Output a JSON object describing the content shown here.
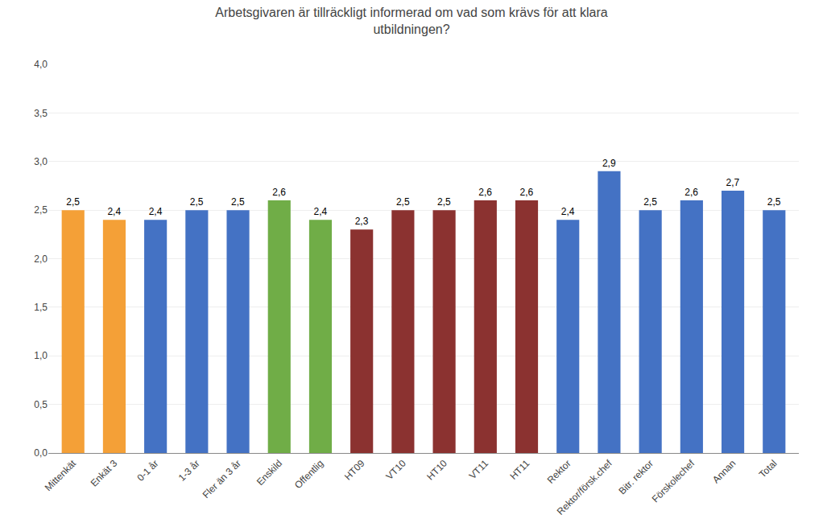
{
  "chart_data": {
    "type": "bar",
    "title": "Arbetsgivaren är tillräckligt informerad om vad som krävs för att klara\nutbildningen?",
    "categories": [
      "Mittenkät",
      "Enkät 3",
      "0-1 år",
      "1-3 år",
      "Fler än 3 år",
      "Enskild",
      "Offentlig",
      "HT09",
      "VT10",
      "HT10",
      "VT11",
      "HT11",
      "Rektor",
      "Rektor/försk.chef",
      "Bitr. rektor",
      "Förskolechef",
      "Annan",
      "Total"
    ],
    "values": [
      2.5,
      2.4,
      2.4,
      2.5,
      2.5,
      2.6,
      2.4,
      2.3,
      2.5,
      2.5,
      2.6,
      2.6,
      2.4,
      2.9,
      2.5,
      2.6,
      2.7,
      2.5
    ],
    "value_labels": [
      "2,5",
      "2,4",
      "2,4",
      "2,5",
      "2,5",
      "2,6",
      "2,4",
      "2,3",
      "2,5",
      "2,5",
      "2,6",
      "2,6",
      "2,4",
      "2,9",
      "2,5",
      "2,6",
      "2,7",
      "2,5"
    ],
    "data_labels": true,
    "colors": [
      "#F4A037",
      "#F4A037",
      "#4472C4",
      "#4472C4",
      "#4472C4",
      "#70AD47",
      "#70AD47",
      "#8B3230",
      "#8B3230",
      "#8B3230",
      "#8B3230",
      "#8B3230",
      "#4472C4",
      "#4472C4",
      "#4472C4",
      "#4472C4",
      "#4472C4",
      "#4472C4"
    ],
    "ylim": [
      0,
      4.0
    ],
    "yticks": [
      {
        "value": 0.0,
        "label": "0,0"
      },
      {
        "value": 0.5,
        "label": "0,5"
      },
      {
        "value": 1.0,
        "label": "1,0"
      },
      {
        "value": 1.5,
        "label": "1,5"
      },
      {
        "value": 2.0,
        "label": "2,0"
      },
      {
        "value": 2.5,
        "label": "2,5"
      },
      {
        "value": 3.0,
        "label": "3,0"
      },
      {
        "value": 3.5,
        "label": "3,5"
      },
      {
        "value": 4.0,
        "label": "4,0"
      }
    ],
    "grid": true
  }
}
